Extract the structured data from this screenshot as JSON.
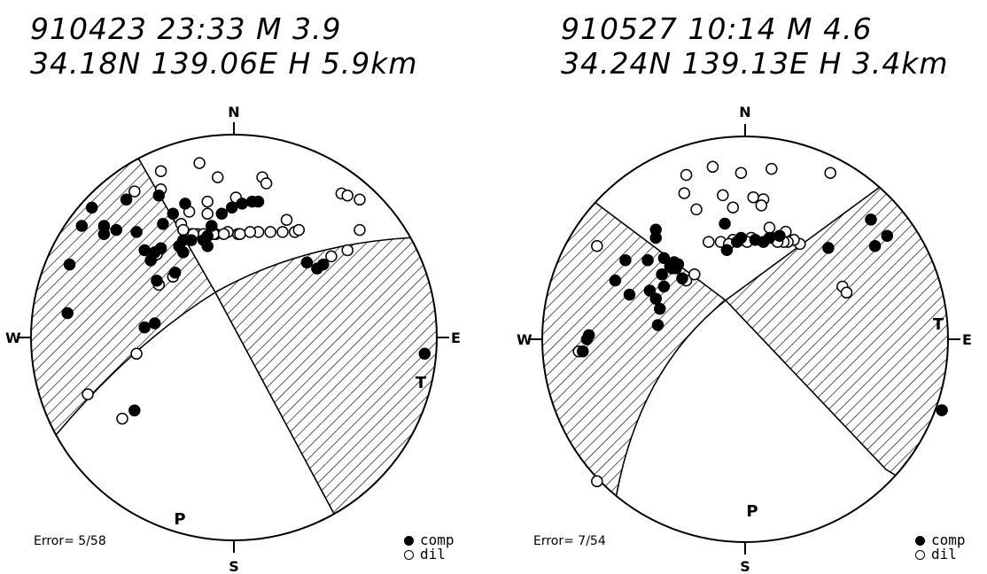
{
  "mechanisms": [
    {
      "header": {
        "line1": "910423  23:33  M 3.9",
        "line2": "34.18N 139.06E H 5.9km"
      },
      "labels": {
        "north": "N",
        "south": "S",
        "east": "E",
        "west": "W",
        "p_axis": "P",
        "t_axis": "T"
      },
      "error": "Error= 5/58",
      "legend": {
        "comp": "comp",
        "dil": "dil"
      },
      "compressions": [
        [
          -0.7,
          -0.64
        ],
        [
          -0.53,
          -0.68
        ],
        [
          -0.37,
          -0.7
        ],
        [
          -0.64,
          -0.55
        ],
        [
          -0.58,
          -0.53
        ],
        [
          -0.48,
          -0.52
        ],
        [
          -0.35,
          -0.56
        ],
        [
          -0.3,
          -0.61
        ],
        [
          -0.24,
          -0.66
        ],
        [
          -0.44,
          -0.43
        ],
        [
          -0.39,
          -0.42
        ],
        [
          -0.41,
          -0.38
        ],
        [
          -0.13,
          -0.5
        ],
        [
          -0.38,
          -0.28
        ],
        [
          -0.29,
          -0.32
        ],
        [
          -0.39,
          -0.07
        ],
        [
          -0.44,
          -0.05
        ],
        [
          -0.21,
          -0.48
        ],
        [
          -0.11,
          -0.55
        ],
        [
          -0.06,
          -0.61
        ],
        [
          -0.01,
          -0.64
        ],
        [
          0.04,
          -0.66
        ],
        [
          0.09,
          -0.67
        ],
        [
          -0.13,
          -0.45
        ],
        [
          -0.36,
          -0.44
        ],
        [
          -0.27,
          -0.45
        ],
        [
          -0.25,
          -0.42
        ],
        [
          -0.64,
          -0.51
        ],
        [
          -0.25,
          -0.48
        ],
        [
          -0.15,
          -0.48
        ],
        [
          0.36,
          -0.37
        ],
        [
          0.41,
          -0.34
        ],
        [
          0.44,
          -0.36
        ],
        [
          0.94,
          0.08
        ],
        [
          -0.49,
          0.36
        ],
        [
          0.12,
          -0.67
        ],
        [
          -0.82,
          -0.12
        ],
        [
          -0.81,
          -0.36
        ],
        [
          -0.75,
          -0.55
        ]
      ],
      "dilatations": [
        [
          -0.49,
          -0.72
        ],
        [
          -0.36,
          -0.73
        ],
        [
          -0.17,
          -0.86
        ],
        [
          -0.08,
          -0.79
        ],
        [
          -0.36,
          -0.82
        ],
        [
          0.14,
          -0.79
        ],
        [
          0.16,
          -0.76
        ],
        [
          -0.13,
          -0.67
        ],
        [
          -0.13,
          -0.61
        ],
        [
          0.01,
          -0.69
        ],
        [
          -0.22,
          -0.62
        ],
        [
          0.53,
          -0.71
        ],
        [
          0.56,
          -0.7
        ],
        [
          0.62,
          -0.68
        ],
        [
          -0.26,
          -0.56
        ],
        [
          -0.21,
          -0.51
        ],
        [
          -0.09,
          -0.51
        ],
        [
          0.02,
          -0.51
        ],
        [
          0.12,
          -0.52
        ],
        [
          0.18,
          -0.52
        ],
        [
          0.24,
          -0.52
        ],
        [
          0.3,
          -0.52
        ],
        [
          0.32,
          -0.53
        ],
        [
          0.26,
          -0.58
        ],
        [
          -0.25,
          -0.53
        ],
        [
          -0.18,
          -0.51
        ],
        [
          -0.03,
          -0.52
        ],
        [
          0.03,
          -0.51
        ],
        [
          0.08,
          -0.52
        ],
        [
          0.56,
          -0.43
        ],
        [
          0.62,
          -0.53
        ],
        [
          -0.37,
          -0.26
        ],
        [
          -0.48,
          0.08
        ],
        [
          -0.27,
          -0.45
        ],
        [
          -0.72,
          0.28
        ],
        [
          -0.38,
          -0.41
        ],
        [
          -0.1,
          -0.51
        ],
        [
          -0.05,
          -0.51
        ],
        [
          -0.3,
          -0.3
        ],
        [
          0.48,
          -0.4
        ],
        [
          -0.15,
          -0.51
        ],
        [
          -0.2,
          -0.51
        ],
        [
          -0.55,
          0.4
        ]
      ]
    },
    {
      "header": {
        "line1": "910527  10:14  M 4.6",
        "line2": "34.24N 139.13E H 3.4km"
      },
      "labels": {
        "north": "N",
        "south": "S",
        "east": "E",
        "west": "W",
        "p_axis": "P",
        "t_axis": "T"
      },
      "error": "Error= 7/54",
      "legend": {
        "comp": "comp",
        "dil": "dil"
      },
      "compressions": [
        [
          -0.44,
          -0.5
        ],
        [
          -0.59,
          -0.39
        ],
        [
          -0.48,
          -0.39
        ],
        [
          -0.64,
          -0.29
        ],
        [
          -0.4,
          -0.26
        ],
        [
          -0.37,
          -0.36
        ],
        [
          -0.31,
          -0.3
        ],
        [
          -0.36,
          -0.35
        ],
        [
          -0.41,
          -0.32
        ],
        [
          -0.47,
          -0.24
        ],
        [
          -0.44,
          -0.2
        ],
        [
          -0.42,
          -0.15
        ],
        [
          -0.43,
          -0.07
        ],
        [
          -0.57,
          -0.22
        ],
        [
          -0.78,
          0.0
        ],
        [
          -0.77,
          -0.02
        ],
        [
          -0.8,
          0.06
        ],
        [
          -0.34,
          -0.35
        ],
        [
          -0.33,
          -0.37
        ],
        [
          -0.09,
          -0.44
        ],
        [
          -0.04,
          -0.48
        ],
        [
          0.05,
          -0.49
        ],
        [
          0.12,
          -0.5
        ],
        [
          0.17,
          -0.51
        ],
        [
          0.09,
          -0.48
        ],
        [
          0.41,
          -0.45
        ],
        [
          0.62,
          -0.59
        ],
        [
          0.64,
          -0.46
        ],
        [
          0.7,
          -0.51
        ],
        [
          0.97,
          0.35
        ],
        [
          -0.4,
          -0.4
        ],
        [
          -0.02,
          -0.5
        ],
        [
          -0.1,
          -0.57
        ],
        [
          -0.44,
          -0.54
        ],
        [
          -0.35,
          -0.38
        ]
      ],
      "dilatations": [
        [
          -0.29,
          -0.81
        ],
        [
          -0.16,
          -0.85
        ],
        [
          -0.02,
          -0.82
        ],
        [
          0.13,
          -0.84
        ],
        [
          -0.3,
          -0.72
        ],
        [
          -0.24,
          -0.64
        ],
        [
          -0.11,
          -0.71
        ],
        [
          -0.06,
          -0.65
        ],
        [
          0.04,
          -0.7
        ],
        [
          0.09,
          -0.69
        ],
        [
          0.08,
          -0.66
        ],
        [
          0.42,
          -0.82
        ],
        [
          -0.18,
          -0.48
        ],
        [
          -0.12,
          -0.48
        ],
        [
          -0.06,
          -0.49
        ],
        [
          -0.01,
          -0.49
        ],
        [
          0.03,
          -0.5
        ],
        [
          0.13,
          -0.5
        ],
        [
          0.2,
          -0.53
        ],
        [
          0.27,
          -0.47
        ],
        [
          0.24,
          -0.49
        ],
        [
          0.21,
          -0.48
        ],
        [
          0.48,
          -0.26
        ],
        [
          0.5,
          -0.23
        ],
        [
          -0.29,
          -0.29
        ],
        [
          -0.25,
          -0.32
        ],
        [
          -0.82,
          0.06
        ],
        [
          -0.73,
          -0.46
        ],
        [
          -0.73,
          0.7
        ],
        [
          0.12,
          -0.55
        ],
        [
          0.01,
          -0.48
        ],
        [
          -0.08,
          -0.47
        ],
        [
          0.19,
          -0.48
        ],
        [
          0.16,
          -0.48
        ]
      ]
    }
  ]
}
